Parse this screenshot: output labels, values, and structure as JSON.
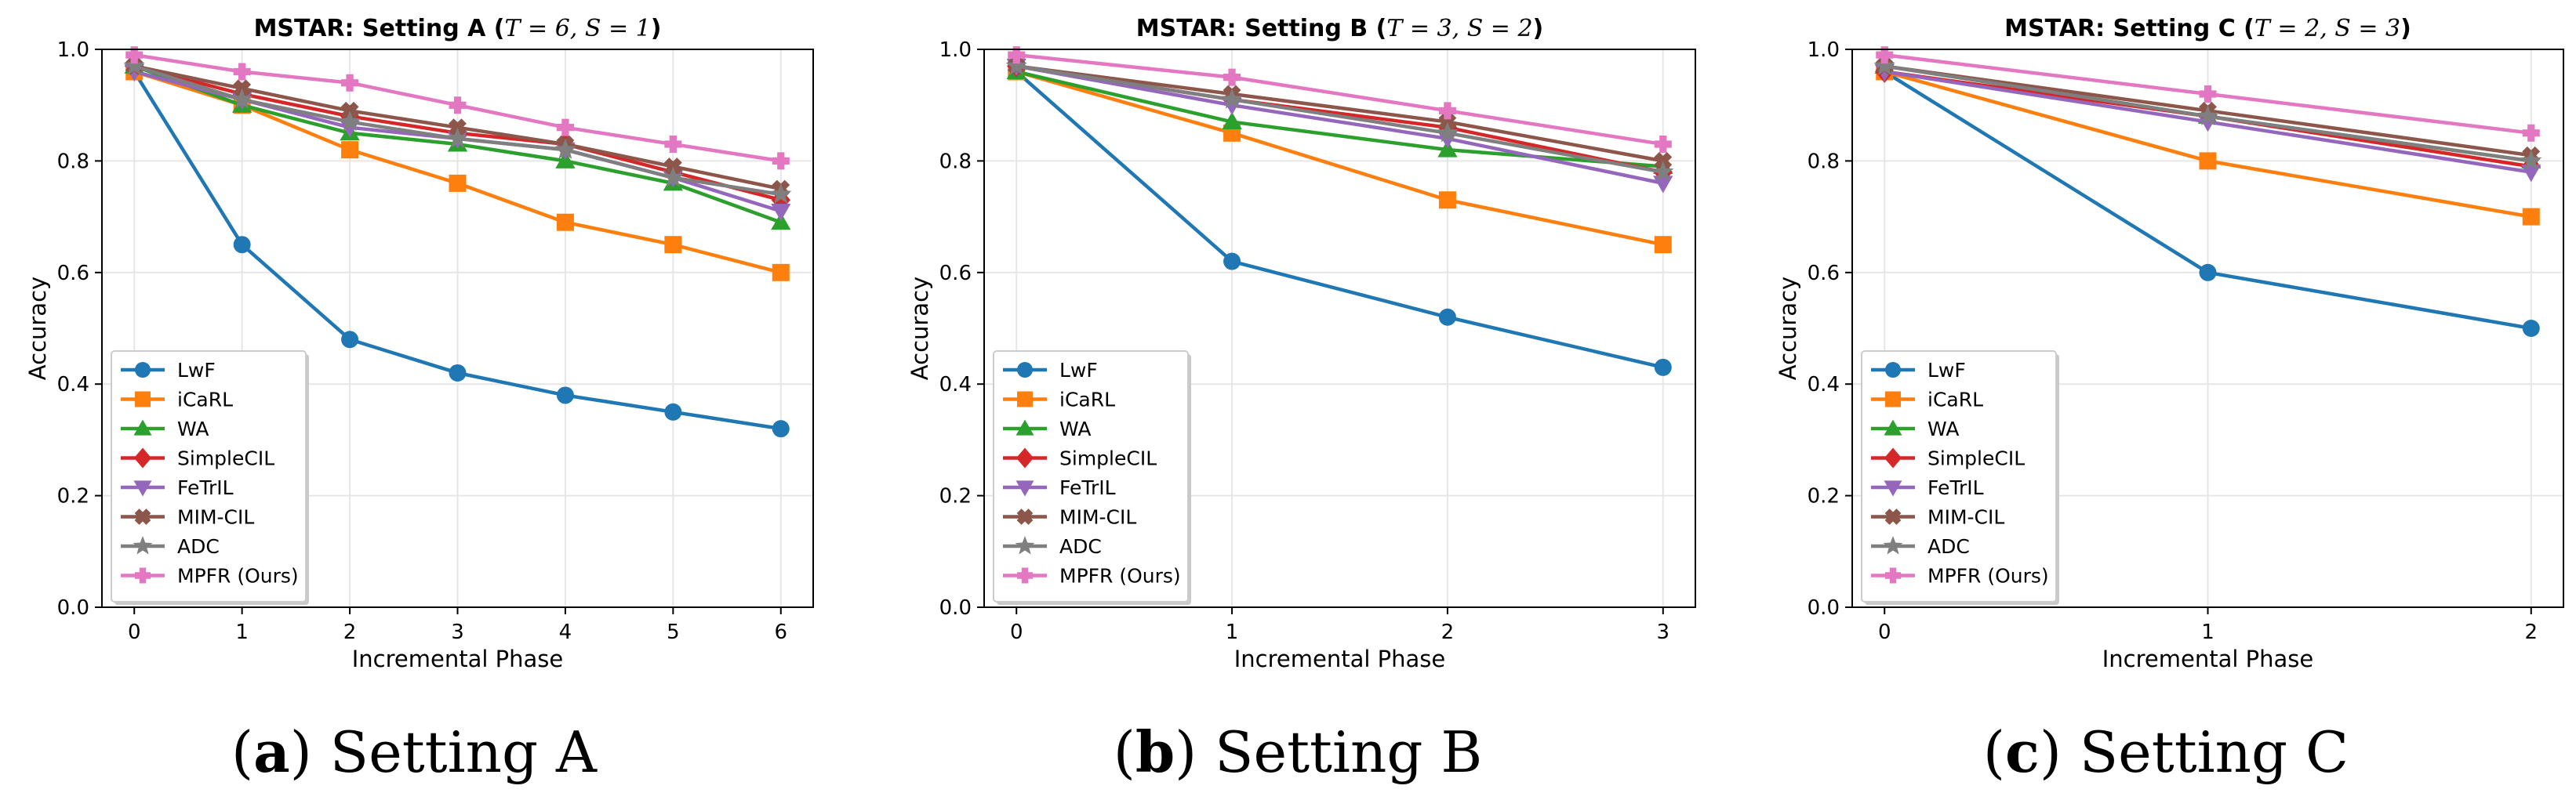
{
  "series_style": [
    {
      "name": "LwF",
      "color": "#1f77b4",
      "marker": "circle"
    },
    {
      "name": "iCaRL",
      "color": "#ff7f0e",
      "marker": "square"
    },
    {
      "name": "WA",
      "color": "#2ca02c",
      "marker": "triangle-up"
    },
    {
      "name": "SimpleCIL",
      "color": "#d62728",
      "marker": "diamond"
    },
    {
      "name": "FeTrIL",
      "color": "#9467bd",
      "marker": "triangle-down"
    },
    {
      "name": "MIM-CIL",
      "color": "#8c564b",
      "marker": "x-filled"
    },
    {
      "name": "ADC",
      "color": "#7f7f7f",
      "marker": "star"
    },
    {
      "name": "MPFR (Ours)",
      "color": "#e377c2",
      "marker": "plus-filled"
    }
  ],
  "chart_data": [
    {
      "type": "line",
      "title_prefix": "MSTAR: Setting A (",
      "title_math": "T = 6, S = 1",
      "title_suffix": ")",
      "caption_letter": "a",
      "caption_text": "Setting A",
      "xlabel": "Incremental Phase",
      "ylabel": "Accuracy",
      "x": [
        0,
        1,
        2,
        3,
        4,
        5,
        6
      ],
      "xlim": [
        -0.3,
        6.3
      ],
      "ylim": [
        0.0,
        1.0
      ],
      "yticks": [
        "0.0",
        "0.2",
        "0.4",
        "0.6",
        "0.8",
        "1.0"
      ],
      "grid": true,
      "legend": "lower-left",
      "series": [
        {
          "name": "LwF",
          "values": [
            0.96,
            0.65,
            0.48,
            0.42,
            0.38,
            0.35,
            0.32
          ]
        },
        {
          "name": "iCaRL",
          "values": [
            0.96,
            0.9,
            0.82,
            0.76,
            0.69,
            0.65,
            0.6
          ]
        },
        {
          "name": "WA",
          "values": [
            0.97,
            0.9,
            0.85,
            0.83,
            0.8,
            0.76,
            0.69
          ]
        },
        {
          "name": "SimpleCIL",
          "values": [
            0.97,
            0.92,
            0.88,
            0.85,
            0.83,
            0.78,
            0.73
          ]
        },
        {
          "name": "FeTrIL",
          "values": [
            0.96,
            0.91,
            0.86,
            0.84,
            0.82,
            0.77,
            0.71
          ]
        },
        {
          "name": "MIM-CIL",
          "values": [
            0.97,
            0.93,
            0.89,
            0.86,
            0.83,
            0.79,
            0.75
          ]
        },
        {
          "name": "ADC",
          "values": [
            0.97,
            0.91,
            0.87,
            0.84,
            0.82,
            0.77,
            0.74
          ]
        },
        {
          "name": "MPFR (Ours)",
          "values": [
            0.99,
            0.96,
            0.94,
            0.9,
            0.86,
            0.83,
            0.8
          ]
        }
      ]
    },
    {
      "type": "line",
      "title_prefix": "MSTAR: Setting B (",
      "title_math": "T = 3, S = 2",
      "title_suffix": ")",
      "caption_letter": "b",
      "caption_text": "Setting B",
      "xlabel": "Incremental Phase",
      "ylabel": "Accuracy",
      "x": [
        0,
        1,
        2,
        3
      ],
      "xlim": [
        -0.15,
        3.15
      ],
      "ylim": [
        0.0,
        1.0
      ],
      "yticks": [
        "0.0",
        "0.2",
        "0.4",
        "0.6",
        "0.8",
        "1.0"
      ],
      "grid": true,
      "legend": "lower-left",
      "series": [
        {
          "name": "LwF",
          "values": [
            0.96,
            0.62,
            0.52,
            0.43
          ]
        },
        {
          "name": "iCaRL",
          "values": [
            0.96,
            0.85,
            0.73,
            0.65
          ]
        },
        {
          "name": "WA",
          "values": [
            0.96,
            0.87,
            0.82,
            0.79
          ]
        },
        {
          "name": "SimpleCIL",
          "values": [
            0.97,
            0.91,
            0.86,
            0.78
          ]
        },
        {
          "name": "FeTrIL",
          "values": [
            0.97,
            0.9,
            0.84,
            0.76
          ]
        },
        {
          "name": "MIM-CIL",
          "values": [
            0.97,
            0.92,
            0.87,
            0.8
          ]
        },
        {
          "name": "ADC",
          "values": [
            0.97,
            0.91,
            0.85,
            0.78
          ]
        },
        {
          "name": "MPFR (Ours)",
          "values": [
            0.99,
            0.95,
            0.89,
            0.83
          ]
        }
      ]
    },
    {
      "type": "line",
      "title_prefix": "MSTAR: Setting C (",
      "title_math": "T = 2, S = 3",
      "title_suffix": ")",
      "caption_letter": "c",
      "caption_text": "Setting C",
      "xlabel": "Incremental Phase",
      "ylabel": "Accuracy",
      "x": [
        0,
        1,
        2
      ],
      "xlim": [
        -0.1,
        2.1
      ],
      "ylim": [
        0.0,
        1.0
      ],
      "yticks": [
        "0.0",
        "0.2",
        "0.4",
        "0.6",
        "0.8",
        "1.0"
      ],
      "grid": true,
      "legend": "lower-left",
      "series": [
        {
          "name": "LwF",
          "values": [
            0.96,
            0.6,
            0.5
          ]
        },
        {
          "name": "iCaRL",
          "values": [
            0.96,
            0.8,
            0.7
          ]
        },
        {
          "name": "WA",
          "values": [
            0.97,
            0.88,
            0.8
          ]
        },
        {
          "name": "SimpleCIL",
          "values": [
            0.96,
            0.88,
            0.79
          ]
        },
        {
          "name": "FeTrIL",
          "values": [
            0.96,
            0.87,
            0.78
          ]
        },
        {
          "name": "MIM-CIL",
          "values": [
            0.97,
            0.89,
            0.81
          ]
        },
        {
          "name": "ADC",
          "values": [
            0.97,
            0.88,
            0.8
          ]
        },
        {
          "name": "MPFR (Ours)",
          "values": [
            0.99,
            0.92,
            0.85
          ]
        }
      ]
    }
  ]
}
